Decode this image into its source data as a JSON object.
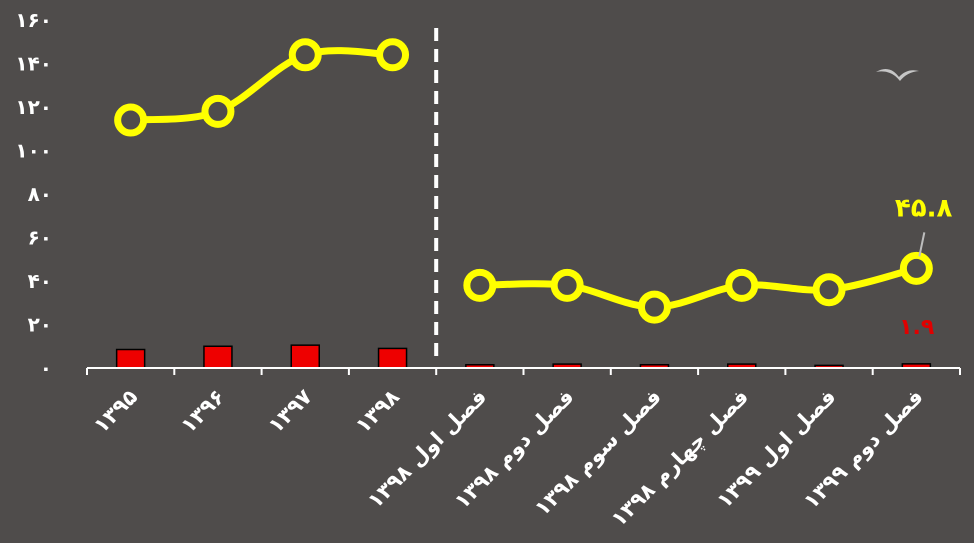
{
  "chart_data": {
    "type": "bar+line",
    "title": "",
    "xlabel": "",
    "ylabel": "",
    "ylim": [
      0,
      160
    ],
    "yticks": [
      0,
      20,
      40,
      60,
      80,
      100,
      120,
      140,
      160
    ],
    "ytick_labels": [
      "۰",
      "۲۰",
      "۴۰",
      "۶۰",
      "۸۰",
      "۱۰۰",
      "۱۲۰",
      "۱۴۰",
      "۱۶۰"
    ],
    "categories": [
      "۱۳۹۵",
      "۱۳۹۶",
      "۱۳۹۷",
      "۱۳۹۸",
      "فصل اول ۱۳۹۸",
      "فصل دوم ۱۳۹۸",
      "فصل سوم ۱۳۹۸",
      "فصل چهارم ۱۳۹۸",
      "فصل اول ۱۳۹۹",
      "فصل دوم ۱۳۹۹"
    ],
    "separator_after_index": 3,
    "series": [
      {
        "type": "line",
        "color": "#ffff00",
        "segments": [
          [
            0,
            3
          ],
          [
            4,
            9
          ]
        ],
        "values": [
          114,
          118,
          144,
          144,
          38,
          38,
          28,
          38,
          36,
          45.8
        ]
      },
      {
        "type": "bar",
        "color": "#ee0000",
        "values": [
          8.5,
          10,
          10.5,
          9,
          1.5,
          1.8,
          1.5,
          1.8,
          1.2,
          1.9
        ]
      }
    ],
    "data_labels": [
      {
        "series": 0,
        "index": 9,
        "text": "۴۵.۸"
      },
      {
        "series": 1,
        "index": 9,
        "text": "۱.۹"
      }
    ],
    "grid": false,
    "legend": "none"
  },
  "decor": {
    "bird": "bird-icon"
  }
}
